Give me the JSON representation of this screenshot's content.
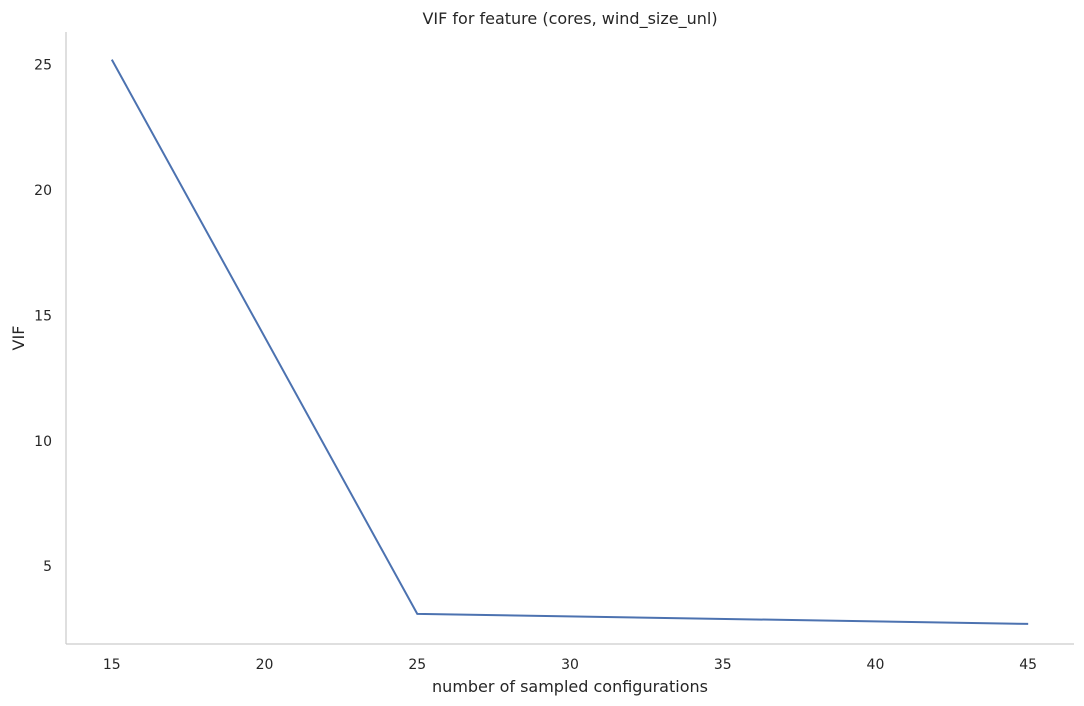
{
  "chart_data": {
    "type": "line",
    "title": "VIF for feature (cores, wind_size_unl)",
    "xlabel": "number of sampled configurations",
    "ylabel": "VIF",
    "x": [
      15,
      25,
      45
    ],
    "series": [
      {
        "values": [
          25.2,
          3.1,
          2.7
        ],
        "color": "#4c72b0"
      }
    ],
    "xlim": [
      13.5,
      46.5
    ],
    "ylim": [
      1.9,
      26.3
    ],
    "xticks": [
      15,
      20,
      25,
      30,
      35,
      40,
      45
    ],
    "yticks": [
      5,
      10,
      15,
      20,
      25
    ],
    "grid": false,
    "legend": "none",
    "axis_color": "#cccccc"
  }
}
